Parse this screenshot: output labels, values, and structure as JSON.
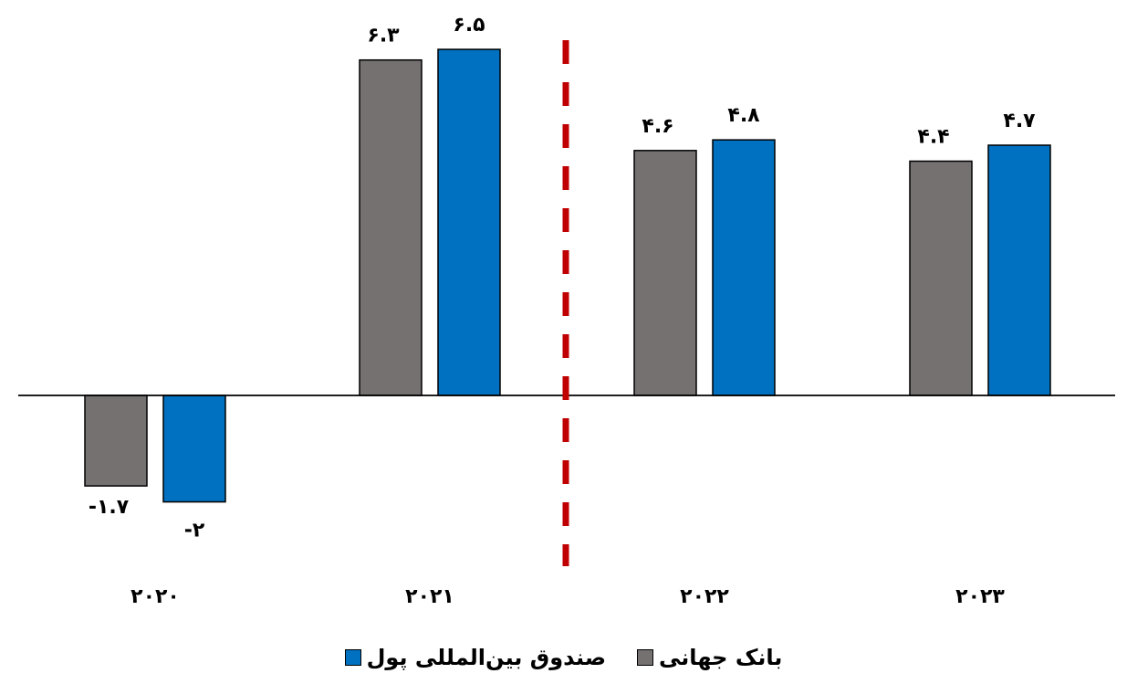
{
  "chart_data": {
    "type": "bar",
    "categories": [
      "۲۰۲۰",
      "۲۰۲۱",
      "۲۰۲۲",
      "۲۰۲۳"
    ],
    "series": [
      {
        "name": "بانک جهانی",
        "color": "#767171",
        "values": [
          -1.7,
          6.3,
          4.6,
          4.4
        ],
        "labels": [
          "-۱.۷",
          "۶.۳",
          "۴.۶",
          "۴.۴"
        ]
      },
      {
        "name": "صندوق بین‌المللی پول",
        "color": "#0070C0",
        "values": [
          -2,
          6.5,
          4.8,
          4.7
        ],
        "labels": [
          "-۲",
          "۶.۵",
          "۴.۸",
          "۴.۷"
        ]
      }
    ],
    "divider": {
      "after_category_index": 1,
      "color": "#C00000",
      "style": "dashed"
    },
    "legend_position": "bottom",
    "grid": false,
    "ylim": [
      -2.5,
      7
    ]
  }
}
